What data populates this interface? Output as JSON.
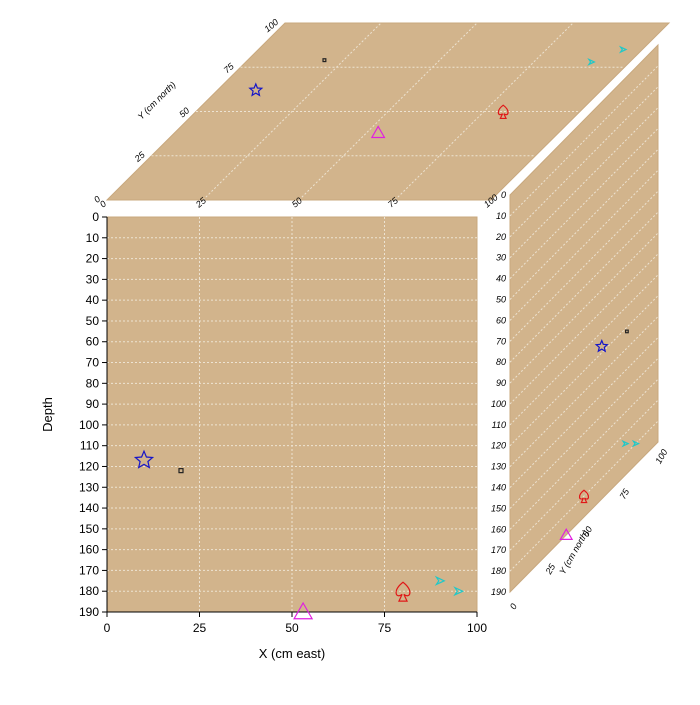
{
  "colors": {
    "panel_fill": "#D2B48C",
    "panel_edge": "#C8A87E",
    "grid": "#EDE3D2",
    "axis": "#000000"
  },
  "chart_data": {
    "type": "scatter",
    "variant": "3d-cube-projection",
    "xlabel": "X (cm east)",
    "ylabel": "Depth",
    "zlabel": "Y (cm north)",
    "xlim": [
      0,
      100
    ],
    "ylim": [
      0,
      190
    ],
    "zlim": [
      0,
      100
    ],
    "x_ticks": [
      "0",
      "25",
      "50",
      "75",
      "100"
    ],
    "y_ticks": [
      "0",
      "10",
      "20",
      "30",
      "40",
      "50",
      "60",
      "70",
      "80",
      "90",
      "100",
      "110",
      "120",
      "130",
      "140",
      "150",
      "160",
      "170",
      "180",
      "190"
    ],
    "z_ticks": [
      "0",
      "25",
      "50",
      "75",
      "100"
    ],
    "y_reversed": true,
    "grid": true,
    "points": [
      {
        "marker": "star",
        "color": "#1515C8",
        "x": 10,
        "y": 117,
        "z": 62
      },
      {
        "marker": "square",
        "color": "#222222",
        "x": 20,
        "y": 122,
        "z": 79
      },
      {
        "marker": "triangle",
        "color": "#E020E0",
        "x": 53,
        "y": 190,
        "z": 38
      },
      {
        "marker": "spade",
        "color": "#E01818",
        "x": 80,
        "y": 180,
        "z": 50
      },
      {
        "marker": "arrow",
        "color": "#20C8C8",
        "x": 90,
        "y": 175,
        "z": 78
      },
      {
        "marker": "arrow",
        "color": "#20C8C8",
        "x": 95,
        "y": 180,
        "z": 85
      }
    ]
  }
}
